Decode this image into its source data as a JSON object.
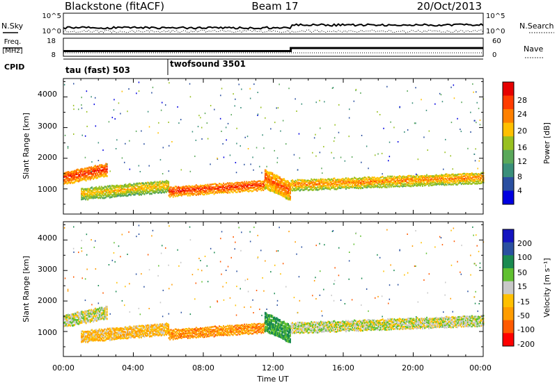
{
  "header": {
    "station": "Blackstone (fitACF)",
    "beam": "Beam 17",
    "date": "20/Oct/2013"
  },
  "noise_panel": {
    "left_label": "N.Sky",
    "right_label": "N.Search",
    "left_ticks": [
      "10^5",
      "10^0"
    ],
    "right_ticks": [
      "10^5",
      "10^0"
    ]
  },
  "freq_panel": {
    "left_label_line1": "Freq.",
    "left_label_line2": "[MHz]",
    "left_ticks": [
      "18",
      "8"
    ],
    "right_label": "Nave",
    "right_ticks": [
      "60",
      "0"
    ]
  },
  "cpid_panel": {
    "label": "CPID",
    "modes": [
      {
        "name": "tau (fast) 503",
        "start_hour": 0
      },
      {
        "name": "twofsound 3501",
        "start_hour": 6
      }
    ]
  },
  "power_panel": {
    "ylabel": "Slant Range [km]",
    "yticks": [
      "4000",
      "3000",
      "2000",
      "1000"
    ],
    "colorbar_label": "Power [dB]",
    "colorbar_ticks": [
      "28",
      "24",
      "20",
      "16",
      "12",
      "8",
      "4"
    ]
  },
  "velocity_panel": {
    "ylabel": "Slant Range [km]",
    "yticks": [
      "4000",
      "3000",
      "2000",
      "1000"
    ],
    "colorbar_label": "Velocity [m s⁻¹]",
    "colorbar_ticks": [
      "200",
      "100",
      "50",
      "15",
      "-15",
      "-50",
      "-100",
      "-200"
    ]
  },
  "xaxis": {
    "label": "Time UT",
    "ticks": [
      "00:00",
      "04:00",
      "08:00",
      "12:00",
      "16:00",
      "20:00",
      "00:00"
    ]
  },
  "chart_data": {
    "type": "heatmap",
    "title": "Blackstone (fitACF)  Beam 17  20/Oct/2013",
    "xlabel": "Time UT",
    "ylabel": "Slant Range [km]",
    "xlim_hours": [
      0,
      24
    ],
    "ylim_km": [
      180,
      4600
    ],
    "frequency_mhz": [
      {
        "from_hour": 0,
        "to_hour": 13,
        "value": 10.5
      },
      {
        "from_hour": 13,
        "to_hour": 24,
        "value": 12.5
      }
    ],
    "power_colorbar_db": [
      4,
      8,
      12,
      16,
      20,
      24,
      28
    ],
    "velocity_colorbar_ms": [
      -200,
      -100,
      -50,
      -15,
      15,
      50,
      100,
      200
    ],
    "power_colors": [
      "#0000e0",
      "#2a4fa0",
      "#3a8f7a",
      "#5aa85a",
      "#98c020",
      "#ffc000",
      "#ff8000",
      "#ff3c00",
      "#e60000"
    ],
    "velocity_colors": [
      "#ff0000",
      "#ff5a00",
      "#ff9c00",
      "#ffc000",
      "#c8c8c8",
      "#60c030",
      "#1a8a50",
      "#2a50a0",
      "#1414c0"
    ],
    "echo_bands": [
      {
        "from_hour": 0.0,
        "to_hour": 2.5,
        "range_start_km": 1100,
        "range_end_km": 1800,
        "power_db": 26,
        "velocity_ms": 0
      },
      {
        "from_hour": 1.0,
        "to_hour": 6.0,
        "range_start_km": 600,
        "range_end_km": 1250,
        "power_db": 20,
        "velocity_ms": -40
      },
      {
        "from_hour": 6.0,
        "to_hour": 11.5,
        "range_start_km": 700,
        "range_end_km": 1250,
        "power_db": 26,
        "velocity_ms": -80
      },
      {
        "from_hour": 11.5,
        "to_hour": 13.0,
        "range_start_km": 1600,
        "range_end_km": 550,
        "power_db": 24,
        "velocity_ms": 60
      },
      {
        "from_hour": 13.0,
        "to_hour": 24.0,
        "range_start_km": 900,
        "range_end_km": 1500,
        "power_db": 22,
        "velocity_ms": 0
      }
    ]
  }
}
